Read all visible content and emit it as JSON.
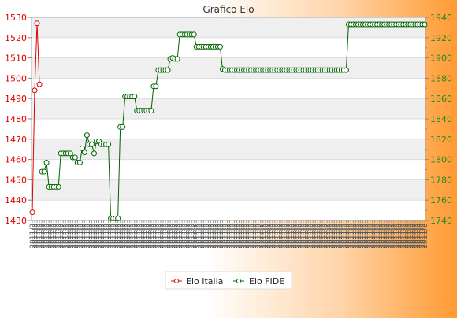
{
  "chart_data": {
    "type": "line",
    "title": "Grafico Elo",
    "grid": true,
    "legend_position": "bottom-center",
    "colors": {
      "left_axis": "#dd0000",
      "right_axis": "#228b22",
      "elo_italia": "#dd0000",
      "elo_fide": "#006400",
      "band": "#efefef"
    },
    "y_left": {
      "ticks": [
        1430,
        1440,
        1450,
        1460,
        1470,
        1480,
        1490,
        1500,
        1510,
        1520,
        1530
      ],
      "ylim": [
        1430,
        1530
      ]
    },
    "y_right": {
      "ticks": [
        1740,
        1760,
        1780,
        1800,
        1820,
        1840,
        1860,
        1880,
        1900,
        1920,
        1940
      ],
      "ylim": [
        1740,
        1940
      ]
    },
    "x_count": 166,
    "x_tick_label": "2011/2",
    "series": [
      {
        "name": "Elo Italia",
        "axis": "left",
        "points": [
          [
            0,
            1434
          ],
          [
            1,
            1494
          ],
          [
            2,
            1527
          ],
          [
            3,
            1497
          ]
        ]
      },
      {
        "name": "Elo FIDE",
        "axis": "right",
        "points": [
          [
            4,
            1788
          ],
          [
            5,
            1788
          ],
          [
            6,
            1797
          ],
          [
            7,
            1773
          ],
          [
            8,
            1773
          ],
          [
            9,
            1773
          ],
          [
            10,
            1773
          ],
          [
            11,
            1773
          ],
          [
            12,
            1806
          ],
          [
            13,
            1806
          ],
          [
            14,
            1806
          ],
          [
            15,
            1806
          ],
          [
            16,
            1806
          ],
          [
            17,
            1802
          ],
          [
            18,
            1802
          ],
          [
            19,
            1797
          ],
          [
            20,
            1797
          ],
          [
            21,
            1811
          ],
          [
            22,
            1807
          ],
          [
            23,
            1824
          ],
          [
            24,
            1815
          ],
          [
            25,
            1815
          ],
          [
            26,
            1806
          ],
          [
            27,
            1818
          ],
          [
            28,
            1818
          ],
          [
            29,
            1815
          ],
          [
            30,
            1815
          ],
          [
            31,
            1815
          ],
          [
            32,
            1815
          ],
          [
            33,
            1742
          ],
          [
            34,
            1742
          ],
          [
            35,
            1742
          ],
          [
            36,
            1742
          ],
          [
            37,
            1832
          ],
          [
            38,
            1832
          ],
          [
            39,
            1862
          ],
          [
            40,
            1862
          ],
          [
            41,
            1862
          ],
          [
            42,
            1862
          ],
          [
            43,
            1862
          ],
          [
            44,
            1848
          ],
          [
            45,
            1848
          ],
          [
            46,
            1848
          ],
          [
            47,
            1848
          ],
          [
            48,
            1848
          ],
          [
            49,
            1848
          ],
          [
            50,
            1848
          ],
          [
            51,
            1872
          ],
          [
            52,
            1872
          ],
          [
            53,
            1888
          ],
          [
            54,
            1888
          ],
          [
            55,
            1888
          ],
          [
            56,
            1888
          ],
          [
            57,
            1888
          ],
          [
            58,
            1899
          ],
          [
            59,
            1900
          ],
          [
            60,
            1899
          ],
          [
            61,
            1899
          ],
          [
            62,
            1923
          ],
          [
            63,
            1923
          ],
          [
            64,
            1923
          ],
          [
            65,
            1923
          ],
          [
            66,
            1923
          ],
          [
            67,
            1923
          ],
          [
            68,
            1923
          ],
          [
            69,
            1911
          ],
          [
            70,
            1911
          ],
          [
            71,
            1911
          ],
          [
            72,
            1911
          ],
          [
            73,
            1911
          ],
          [
            74,
            1911
          ],
          [
            75,
            1911
          ],
          [
            76,
            1911
          ],
          [
            77,
            1911
          ],
          [
            78,
            1911
          ],
          [
            79,
            1911
          ],
          [
            80,
            1889
          ],
          [
            81,
            1888
          ],
          [
            82,
            1888
          ],
          [
            83,
            1888
          ],
          [
            84,
            1888
          ],
          [
            85,
            1888
          ],
          [
            86,
            1888
          ],
          [
            87,
            1888
          ],
          [
            88,
            1888
          ],
          [
            89,
            1888
          ],
          [
            90,
            1888
          ],
          [
            91,
            1888
          ],
          [
            92,
            1888
          ],
          [
            93,
            1888
          ],
          [
            94,
            1888
          ],
          [
            95,
            1888
          ],
          [
            96,
            1888
          ],
          [
            97,
            1888
          ],
          [
            98,
            1888
          ],
          [
            99,
            1888
          ],
          [
            100,
            1888
          ],
          [
            101,
            1888
          ],
          [
            102,
            1888
          ],
          [
            103,
            1888
          ],
          [
            104,
            1888
          ],
          [
            105,
            1888
          ],
          [
            106,
            1888
          ],
          [
            107,
            1888
          ],
          [
            108,
            1888
          ],
          [
            109,
            1888
          ],
          [
            110,
            1888
          ],
          [
            111,
            1888
          ],
          [
            112,
            1888
          ],
          [
            113,
            1888
          ],
          [
            114,
            1888
          ],
          [
            115,
            1888
          ],
          [
            116,
            1888
          ],
          [
            117,
            1888
          ],
          [
            118,
            1888
          ],
          [
            119,
            1888
          ],
          [
            120,
            1888
          ],
          [
            121,
            1888
          ],
          [
            122,
            1888
          ],
          [
            123,
            1888
          ],
          [
            124,
            1888
          ],
          [
            125,
            1888
          ],
          [
            126,
            1888
          ],
          [
            127,
            1888
          ],
          [
            128,
            1888
          ],
          [
            129,
            1888
          ],
          [
            130,
            1888
          ],
          [
            131,
            1888
          ],
          [
            132,
            1888
          ],
          [
            133,
            1933
          ],
          [
            134,
            1933
          ],
          [
            135,
            1933
          ],
          [
            136,
            1933
          ],
          [
            137,
            1933
          ],
          [
            138,
            1933
          ],
          [
            139,
            1933
          ],
          [
            140,
            1933
          ],
          [
            141,
            1933
          ],
          [
            142,
            1933
          ],
          [
            143,
            1933
          ],
          [
            144,
            1933
          ],
          [
            145,
            1933
          ],
          [
            146,
            1933
          ],
          [
            147,
            1933
          ],
          [
            148,
            1933
          ],
          [
            149,
            1933
          ],
          [
            150,
            1933
          ],
          [
            151,
            1933
          ],
          [
            152,
            1933
          ],
          [
            153,
            1933
          ],
          [
            154,
            1933
          ],
          [
            155,
            1933
          ],
          [
            156,
            1933
          ],
          [
            157,
            1933
          ],
          [
            158,
            1933
          ],
          [
            159,
            1933
          ],
          [
            160,
            1933
          ],
          [
            161,
            1933
          ],
          [
            162,
            1933
          ],
          [
            163,
            1933
          ],
          [
            164,
            1933
          ],
          [
            165,
            1933
          ]
        ]
      }
    ]
  }
}
